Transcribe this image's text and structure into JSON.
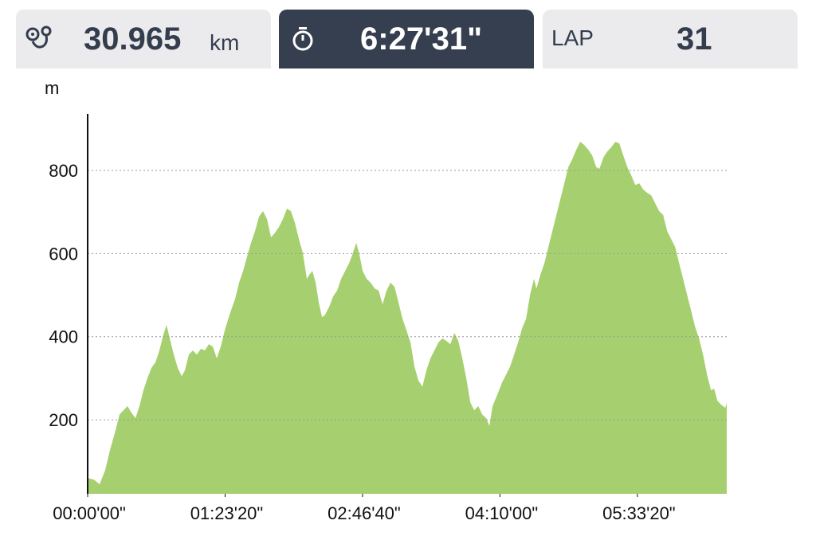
{
  "header": {
    "distance": "30.965",
    "distance_unit": "km",
    "time": "6:27'31\"",
    "lap_label": "LAP",
    "lap": "31"
  },
  "chart_data": {
    "type": "area",
    "y_label": "m",
    "color": "#a6d06f",
    "grid": true,
    "xlim": [
      0,
      23251
    ],
    "ylim": [
      22,
      936
    ],
    "xticks": [
      {
        "value": 0,
        "label": "00:00'00\""
      },
      {
        "value": 5000,
        "label": "01:23'20\""
      },
      {
        "value": 10000,
        "label": "02:46'40\""
      },
      {
        "value": 15000,
        "label": "04:10'00\""
      },
      {
        "value": 20000,
        "label": "05:33'20\""
      }
    ],
    "yticks": [
      200,
      400,
      600,
      800
    ],
    "x": [
      0,
      232,
      435,
      638,
      812,
      1015,
      1160,
      1305,
      1450,
      1595,
      1740,
      1885,
      2030,
      2175,
      2320,
      2465,
      2610,
      2755,
      2871,
      2987,
      3132,
      3277,
      3422,
      3538,
      3683,
      3828,
      3973,
      4118,
      4263,
      4408,
      4553,
      4698,
      4843,
      4988,
      5162,
      5365,
      5510,
      5655,
      5800,
      5945,
      6090,
      6235,
      6380,
      6525,
      6670,
      6815,
      6960,
      7105,
      7250,
      7395,
      7540,
      7685,
      7830,
      7975,
      8062,
      8178,
      8294,
      8410,
      8526,
      8642,
      8787,
      8932,
      9077,
      9222,
      9367,
      9512,
      9628,
      9773,
      9889,
      10005,
      10150,
      10295,
      10440,
      10585,
      10730,
      10875,
      11020,
      11165,
      11310,
      11455,
      11600,
      11745,
      11890,
      12035,
      12180,
      12325,
      12470,
      12615,
      12760,
      12905,
      13050,
      13195,
      13340,
      13485,
      13630,
      13775,
      13920,
      14065,
      14210,
      14355,
      14500,
      14616,
      14732,
      14906,
      15080,
      15225,
      15370,
      15515,
      15660,
      15805,
      15950,
      16095,
      16240,
      16327,
      16472,
      16617,
      16762,
      16907,
      17052,
      17197,
      17342,
      17487,
      17632,
      17777,
      17922,
      18067,
      18212,
      18357,
      18502,
      18618,
      18763,
      18908,
      19053,
      19198,
      19343,
      19488,
      19633,
      19778,
      19923,
      20068,
      20213,
      20358,
      20503,
      20648,
      20793,
      20938,
      21083,
      21228,
      21373,
      21518,
      21663,
      21808,
      21953,
      22098,
      22243,
      22388,
      22533,
      22678,
      22794,
      22910,
      23055,
      23200,
      23251
    ],
    "values": [
      60,
      56,
      45,
      79,
      127,
      175,
      213,
      223,
      233,
      217,
      204,
      233,
      271,
      300,
      325,
      338,
      367,
      405,
      428,
      396,
      357,
      325,
      305,
      319,
      357,
      367,
      357,
      371,
      367,
      382,
      376,
      348,
      376,
      415,
      453,
      491,
      530,
      558,
      593,
      626,
      654,
      689,
      702,
      683,
      639,
      650,
      664,
      683,
      708,
      702,
      674,
      635,
      601,
      539,
      549,
      558,
      530,
      482,
      447,
      453,
      472,
      497,
      511,
      539,
      558,
      577,
      597,
      626,
      597,
      558,
      539,
      530,
      516,
      511,
      478,
      511,
      530,
      520,
      482,
      443,
      415,
      386,
      328,
      294,
      280,
      319,
      348,
      367,
      386,
      396,
      390,
      382,
      409,
      390,
      348,
      300,
      242,
      223,
      233,
      213,
      204,
      185,
      233,
      261,
      290,
      309,
      328,
      357,
      386,
      420,
      443,
      501,
      539,
      516,
      549,
      577,
      616,
      654,
      693,
      731,
      769,
      808,
      827,
      850,
      869,
      861,
      850,
      836,
      808,
      804,
      831,
      846,
      856,
      869,
      865,
      836,
      808,
      788,
      765,
      769,
      754,
      746,
      740,
      721,
      702,
      693,
      654,
      635,
      616,
      577,
      539,
      501,
      463,
      424,
      396,
      357,
      309,
      271,
      275,
      246,
      236,
      229,
      242
    ]
  }
}
